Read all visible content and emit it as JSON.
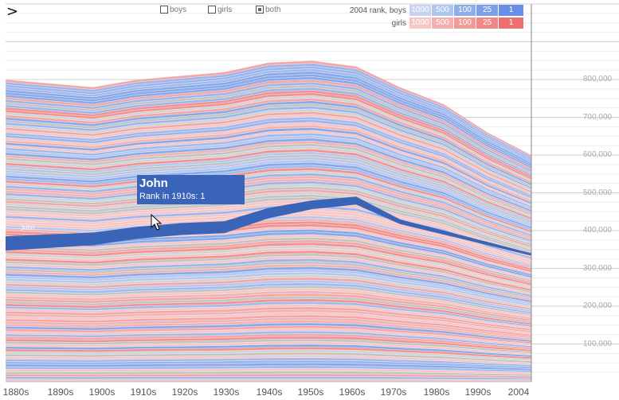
{
  "controls": {
    "nav_icon": "chevron-right-icon",
    "nav_glyph": ">",
    "boys_label": "boys",
    "girls_label": "girls",
    "both_label": "both",
    "selected": "both"
  },
  "legend": {
    "boys_label": "2004 rank, boys",
    "girls_label": "girls",
    "ranks": [
      "1000",
      "500",
      "100",
      "25",
      "1"
    ],
    "boys_colors": [
      "#c8d4ef",
      "#b1c4ee",
      "#90aee6",
      "#7d9fe6",
      "#6a90e6"
    ],
    "girls_colors": [
      "#f6c6c6",
      "#f3aeae",
      "#f29a9a",
      "#ef8888",
      "#ec7070"
    ]
  },
  "tooltip": {
    "name": "John",
    "rank_text": "Rank in 1910s: 1"
  },
  "highlight_label": "John",
  "colors": {
    "boy": "#8aa9e8",
    "girl": "#f2a8a8",
    "neutral": "#c4c4c4",
    "highlight": "#3a64b8"
  },
  "chart_data": {
    "type": "area",
    "stacked": true,
    "x": [
      "1880s",
      "1890s",
      "1900s",
      "1910s",
      "1920s",
      "1930s",
      "1940s",
      "1950s",
      "1960s",
      "1970s",
      "1980s",
      "1990s",
      "2004"
    ],
    "total": [
      800000,
      790000,
      780000,
      800000,
      810000,
      820000,
      845000,
      850000,
      835000,
      780000,
      735000,
      660000,
      600000
    ],
    "series": [
      {
        "name": "John",
        "cumulative_top": [
          385000,
          390000,
          395000,
          410000,
          420000,
          425000,
          460000,
          480000,
          490000,
          430000,
          400000,
          370000,
          340000
        ]
      }
    ],
    "yticks": [
      "100,000",
      "200,000",
      "300,000",
      "400,000",
      "500,000",
      "600,000",
      "700,000",
      "800,000"
    ],
    "ylim": [
      0,
      1000000
    ],
    "grid": true
  }
}
